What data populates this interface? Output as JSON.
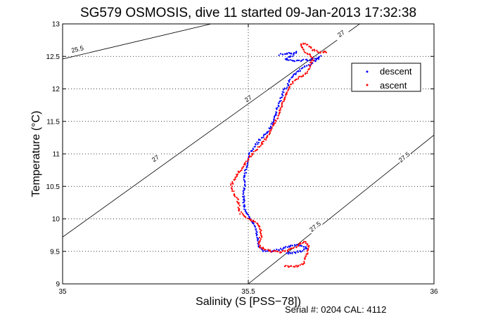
{
  "chart_data": {
    "type": "scatter",
    "title": "SG579 OSMOSIS, dive 11 started 09-Jan-2013 17:32:38",
    "xlabel": "Salinity (S [PSS−78])",
    "ylabel": "Temperature (°C)",
    "xlim": [
      35,
      36
    ],
    "ylim": [
      9,
      13
    ],
    "x_ticks": [
      "35",
      "35.5",
      "36"
    ],
    "y_ticks": [
      "9",
      "9.5",
      "10",
      "10.5",
      "11",
      "11.5",
      "12",
      "12.5",
      "13"
    ],
    "grid": "dotted, at x tick 35.5 and every y tick",
    "legend": {
      "position": "top-right",
      "entries": [
        "descent",
        "ascent"
      ]
    },
    "footer": "Serial #: 0204  CAL: 4112",
    "series": [
      {
        "name": "descent",
        "color": "#0000ff",
        "path": [
          [
            35.585,
            12.53
          ],
          [
            35.6,
            12.54
          ],
          [
            35.62,
            12.55
          ],
          [
            35.63,
            12.57
          ],
          [
            35.615,
            12.5
          ],
          [
            35.6,
            12.45
          ],
          [
            35.625,
            12.43
          ],
          [
            35.65,
            12.44
          ],
          [
            35.67,
            12.45
          ],
          [
            35.69,
            12.47
          ],
          [
            35.695,
            12.52
          ],
          [
            35.685,
            12.45
          ],
          [
            35.67,
            12.39
          ],
          [
            35.65,
            12.34
          ],
          [
            35.635,
            12.28
          ],
          [
            35.62,
            12.2
          ],
          [
            35.61,
            12.12
          ],
          [
            35.605,
            12.04
          ],
          [
            35.595,
            11.96
          ],
          [
            35.59,
            11.88
          ],
          [
            35.585,
            11.8
          ],
          [
            35.58,
            11.72
          ],
          [
            35.575,
            11.64
          ],
          [
            35.57,
            11.56
          ],
          [
            35.565,
            11.48
          ],
          [
            35.56,
            11.42
          ],
          [
            35.555,
            11.36
          ],
          [
            35.545,
            11.3
          ],
          [
            35.535,
            11.24
          ],
          [
            35.525,
            11.17
          ],
          [
            35.515,
            11.1
          ],
          [
            35.505,
            11.02
          ],
          [
            35.5,
            10.95
          ],
          [
            35.497,
            10.88
          ],
          [
            35.495,
            10.8
          ],
          [
            35.492,
            10.72
          ],
          [
            35.49,
            10.64
          ],
          [
            35.49,
            10.56
          ],
          [
            35.49,
            10.48
          ],
          [
            35.488,
            10.4
          ],
          [
            35.487,
            10.32
          ],
          [
            35.488,
            10.24
          ],
          [
            35.49,
            10.16
          ],
          [
            35.495,
            10.08
          ],
          [
            35.505,
            10.0
          ],
          [
            35.515,
            9.92
          ],
          [
            35.52,
            9.85
          ],
          [
            35.522,
            9.78
          ],
          [
            35.525,
            9.7
          ],
          [
            35.528,
            9.62
          ],
          [
            35.53,
            9.56
          ],
          [
            35.54,
            9.51
          ],
          [
            35.56,
            9.5
          ],
          [
            35.58,
            9.52
          ],
          [
            35.595,
            9.55
          ],
          [
            35.61,
            9.58
          ],
          [
            35.63,
            9.6
          ],
          [
            35.65,
            9.58
          ],
          [
            35.66,
            9.55
          ],
          [
            35.64,
            9.5
          ],
          [
            35.62,
            9.47
          ],
          [
            35.6,
            9.48
          ]
        ]
      },
      {
        "name": "ascent",
        "color": "#ff0000",
        "path": [
          [
            35.6,
            9.28
          ],
          [
            35.62,
            9.26
          ],
          [
            35.64,
            9.28
          ],
          [
            35.65,
            9.33
          ],
          [
            35.655,
            9.4
          ],
          [
            35.66,
            9.5
          ],
          [
            35.662,
            9.6
          ],
          [
            35.65,
            9.65
          ],
          [
            35.63,
            9.58
          ],
          [
            35.61,
            9.52
          ],
          [
            35.59,
            9.49
          ],
          [
            35.57,
            9.5
          ],
          [
            35.545,
            9.52
          ],
          [
            35.53,
            9.58
          ],
          [
            35.53,
            9.66
          ],
          [
            35.535,
            9.74
          ],
          [
            35.535,
            9.82
          ],
          [
            35.528,
            9.9
          ],
          [
            35.515,
            9.96
          ],
          [
            35.495,
            10.02
          ],
          [
            35.48,
            10.08
          ],
          [
            35.475,
            10.15
          ],
          [
            35.475,
            10.22
          ],
          [
            35.47,
            10.3
          ],
          [
            35.462,
            10.38
          ],
          [
            35.455,
            10.46
          ],
          [
            35.455,
            10.53
          ],
          [
            35.462,
            10.6
          ],
          [
            35.47,
            10.68
          ],
          [
            35.48,
            10.76
          ],
          [
            35.49,
            10.84
          ],
          [
            35.5,
            10.92
          ],
          [
            35.512,
            11.0
          ],
          [
            35.525,
            11.08
          ],
          [
            35.537,
            11.16
          ],
          [
            35.547,
            11.24
          ],
          [
            35.556,
            11.32
          ],
          [
            35.565,
            11.4
          ],
          [
            35.572,
            11.48
          ],
          [
            35.578,
            11.56
          ],
          [
            35.583,
            11.64
          ],
          [
            35.588,
            11.72
          ],
          [
            35.594,
            11.8
          ],
          [
            35.6,
            11.88
          ],
          [
            35.606,
            11.96
          ],
          [
            35.612,
            12.04
          ],
          [
            35.62,
            12.1
          ],
          [
            35.63,
            12.16
          ],
          [
            35.645,
            12.2
          ],
          [
            35.655,
            12.24
          ],
          [
            35.662,
            12.3
          ],
          [
            35.668,
            12.38
          ],
          [
            35.675,
            12.45
          ],
          [
            35.665,
            12.52
          ],
          [
            35.655,
            12.57
          ],
          [
            35.645,
            12.62
          ],
          [
            35.64,
            12.68
          ],
          [
            35.65,
            12.7
          ],
          [
            35.665,
            12.66
          ],
          [
            35.675,
            12.6
          ],
          [
            35.69,
            12.56
          ],
          [
            35.7,
            12.57
          ],
          [
            35.71,
            12.58
          ],
          [
            35.7,
            12.55
          ]
        ]
      }
    ],
    "contours": [
      {
        "label": "25.5",
        "points": [
          [
            35.0,
            12.46
          ],
          [
            35.4,
            13.0
          ]
        ],
        "labels": [
          [
            35.04,
            12.61
          ]
        ]
      },
      {
        "label": "27",
        "points": [
          [
            35.0,
            9.72
          ],
          [
            35.8,
            13.0
          ]
        ],
        "labels": [
          [
            35.25,
            10.93
          ],
          [
            35.5,
            11.85
          ],
          [
            35.75,
            12.85
          ]
        ]
      },
      {
        "label": "27.5",
        "points": [
          [
            35.5,
            9.0
          ],
          [
            36.0,
            11.29
          ]
        ],
        "labels": [
          [
            35.68,
            9.88
          ],
          [
            35.92,
            10.95
          ]
        ]
      }
    ]
  }
}
